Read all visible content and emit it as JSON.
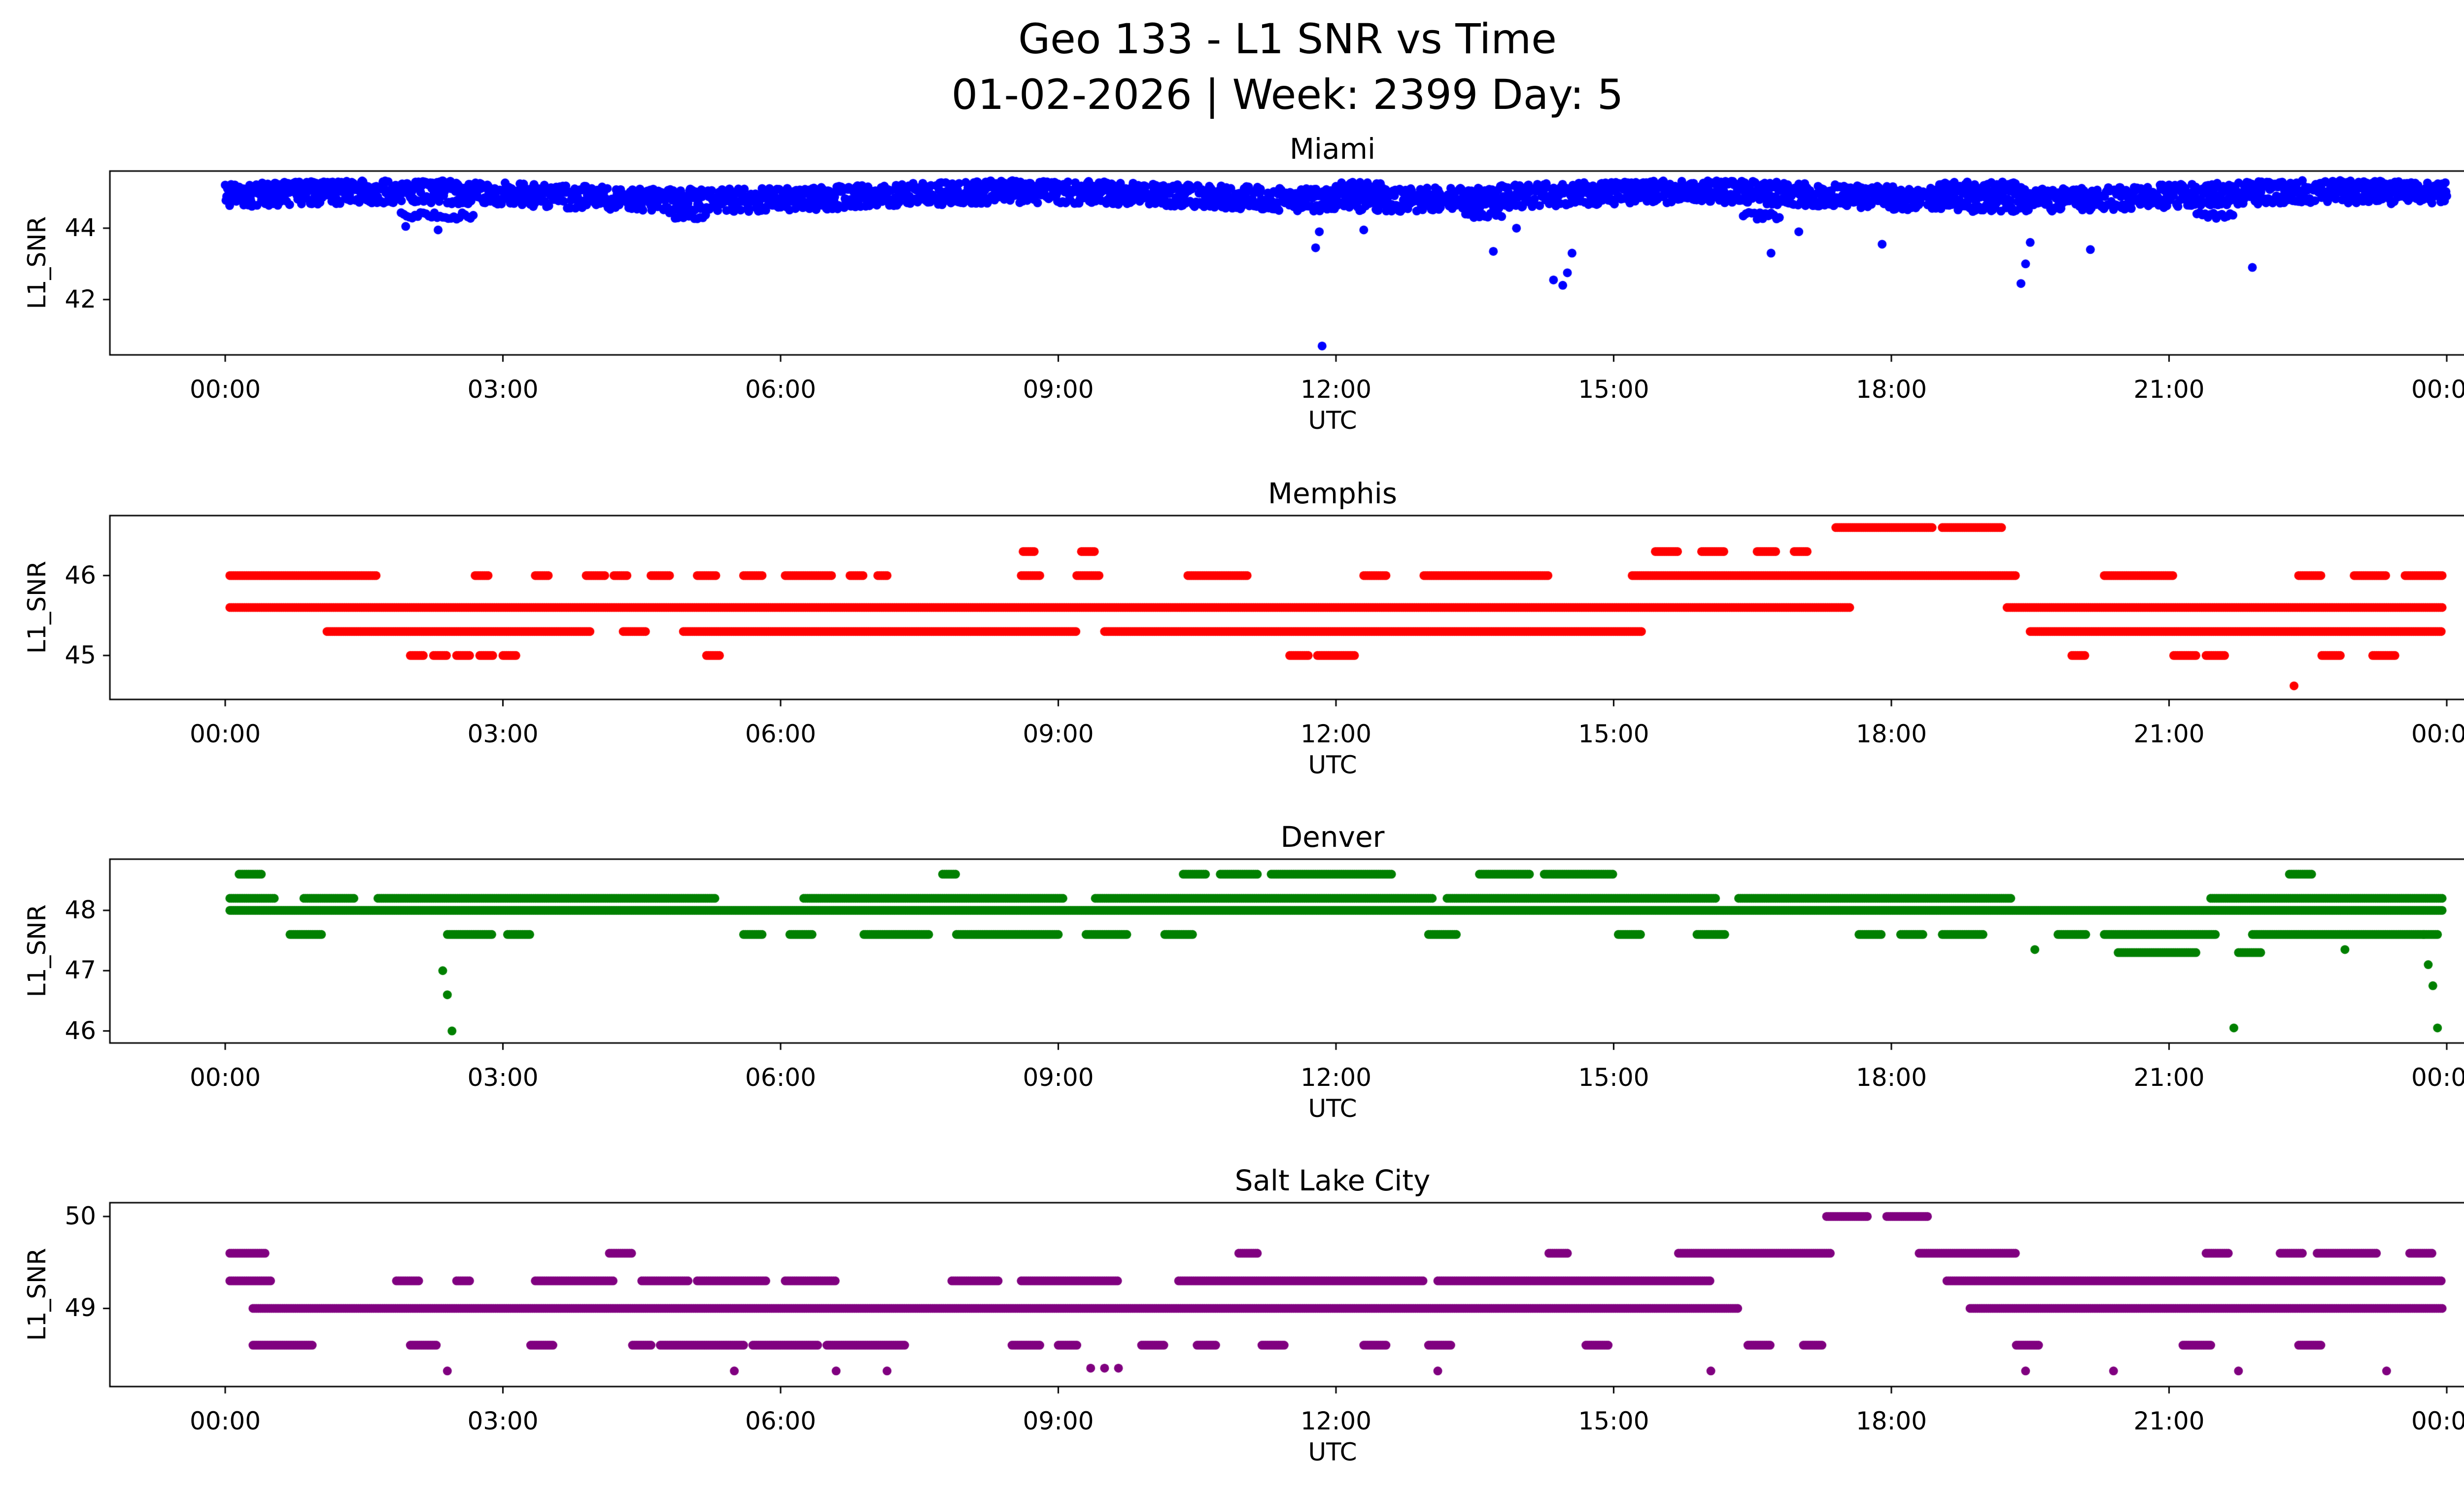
{
  "figure": {
    "title_line1": "Geo 133 - L1 SNR vs Time",
    "title_line2": "01-02-2026 | Week: 2399 Day: 5",
    "background": "#ffffff",
    "axes_color": "#000000"
  },
  "chart_data": [
    {
      "type": "scatter",
      "title": "Miami",
      "color": "#0000ff",
      "xlabel": "UTC",
      "ylabel": "L1_SNR",
      "x_tick_hours": [
        0,
        3,
        6,
        9,
        12,
        15,
        18,
        21,
        24
      ],
      "x_tick_labels": [
        "00:00",
        "03:00",
        "06:00",
        "09:00",
        "12:00",
        "15:00",
        "18:00",
        "21:00",
        "00:00"
      ],
      "y_ticks": [
        42,
        44
      ],
      "ylim": [
        40.45,
        45.6
      ],
      "xlim_hours": [
        0,
        24
      ],
      "bands": [
        {
          "y": 44.9,
          "jitter": 0.32,
          "step": 0.008,
          "wave": [
            0.12,
            7
          ],
          "segments": [
            [
              0,
              24
            ]
          ]
        },
        {
          "y": 45.15,
          "jitter": 0.15,
          "step": 0.02,
          "segments": [
            [
              0.2,
              1.4
            ],
            [
              8.2,
              8.7
            ],
            [
              12.0,
              12.5
            ],
            [
              14.8,
              15.4
            ],
            [
              18.5,
              19.4
            ],
            [
              22.9,
              23.7
            ]
          ]
        },
        {
          "y": 44.35,
          "jitter": 0.1,
          "step": 0.03,
          "segments": [
            [
              1.9,
              2.7
            ],
            [
              4.8,
              5.2
            ],
            [
              13.4,
              13.8
            ],
            [
              16.4,
              16.8
            ],
            [
              21.3,
              21.7
            ]
          ]
        }
      ],
      "points": [
        [
          1.95,
          44.05
        ],
        [
          2.3,
          43.95
        ],
        [
          11.78,
          43.45
        ],
        [
          11.82,
          43.9
        ],
        [
          11.85,
          40.7
        ],
        [
          12.3,
          43.95
        ],
        [
          13.7,
          43.35
        ],
        [
          13.95,
          44.0
        ],
        [
          14.35,
          42.55
        ],
        [
          14.45,
          42.4
        ],
        [
          14.5,
          42.75
        ],
        [
          14.55,
          43.3
        ],
        [
          16.7,
          43.3
        ],
        [
          17.0,
          43.9
        ],
        [
          17.9,
          43.55
        ],
        [
          19.4,
          42.45
        ],
        [
          19.45,
          43.0
        ],
        [
          19.5,
          43.6
        ],
        [
          20.15,
          43.4
        ],
        [
          21.9,
          42.9
        ]
      ]
    },
    {
      "type": "scatter",
      "title": "Memphis",
      "color": "#ff0000",
      "xlabel": "UTC",
      "ylabel": "L1_SNR",
      "x_tick_hours": [
        0,
        3,
        6,
        9,
        12,
        15,
        18,
        21,
        24
      ],
      "x_tick_labels": [
        "00:00",
        "03:00",
        "06:00",
        "09:00",
        "12:00",
        "15:00",
        "18:00",
        "21:00",
        "00:00"
      ],
      "y_ticks": [
        45,
        46
      ],
      "ylim": [
        44.45,
        46.75
      ],
      "xlim_hours": [
        0,
        24
      ],
      "bands": [
        {
          "y": 45.6,
          "segments": [
            [
              0.05,
              17.55
            ],
            [
              19.25,
              23.95
            ]
          ]
        },
        {
          "y": 45.3,
          "segments": [
            [
              1.1,
              3.95
            ],
            [
              4.3,
              4.55
            ],
            [
              4.95,
              9.2
            ],
            [
              9.5,
              15.3
            ],
            [
              19.5,
              23.95
            ]
          ]
        },
        {
          "y": 46.0,
          "segments": [
            [
              0.05,
              1.65
            ],
            [
              2.7,
              2.85
            ],
            [
              3.35,
              3.5
            ],
            [
              3.9,
              4.1
            ],
            [
              4.2,
              4.35
            ],
            [
              4.6,
              4.8
            ],
            [
              5.1,
              5.3
            ],
            [
              5.6,
              5.8
            ],
            [
              6.05,
              6.55
            ],
            [
              6.75,
              6.9
            ],
            [
              7.05,
              7.15
            ],
            [
              8.6,
              8.8
            ],
            [
              9.2,
              9.45
            ],
            [
              10.4,
              11.05
            ],
            [
              12.3,
              12.55
            ],
            [
              12.95,
              14.3
            ],
            [
              15.2,
              19.35
            ],
            [
              20.3,
              21.05
            ],
            [
              22.4,
              22.65
            ],
            [
              23.0,
              23.35
            ],
            [
              23.55,
              23.95
            ]
          ]
        },
        {
          "y": 46.3,
          "segments": [
            [
              8.62,
              8.75
            ],
            [
              9.25,
              9.4
            ],
            [
              15.45,
              15.7
            ],
            [
              15.95,
              16.2
            ],
            [
              16.55,
              16.75
            ],
            [
              16.95,
              17.1
            ]
          ]
        },
        {
          "y": 46.6,
          "segments": [
            [
              17.4,
              18.45
            ],
            [
              18.55,
              19.2
            ]
          ]
        },
        {
          "y": 45.0,
          "segments": [
            [
              2.0,
              2.15
            ],
            [
              2.25,
              2.4
            ],
            [
              2.5,
              2.65
            ],
            [
              2.75,
              2.9
            ],
            [
              3.0,
              3.15
            ],
            [
              5.2,
              5.35
            ],
            [
              11.5,
              11.7
            ],
            [
              11.8,
              12.2
            ],
            [
              19.95,
              20.1
            ],
            [
              21.05,
              21.3
            ],
            [
              21.4,
              21.6
            ],
            [
              22.65,
              22.85
            ],
            [
              23.2,
              23.45
            ]
          ]
        }
      ],
      "points": [
        [
          22.35,
          44.62
        ]
      ]
    },
    {
      "type": "scatter",
      "title": "Denver",
      "color": "#008000",
      "xlabel": "UTC",
      "ylabel": "L1_SNR",
      "x_tick_hours": [
        0,
        3,
        6,
        9,
        12,
        15,
        18,
        21,
        24
      ],
      "x_tick_labels": [
        "00:00",
        "03:00",
        "06:00",
        "09:00",
        "12:00",
        "15:00",
        "18:00",
        "21:00",
        "00:00"
      ],
      "y_ticks": [
        46,
        47,
        48
      ],
      "ylim": [
        45.8,
        48.85
      ],
      "xlim_hours": [
        0,
        24
      ],
      "bands": [
        {
          "y": 48.0,
          "segments": [
            [
              0.05,
              23.95
            ]
          ]
        },
        {
          "y": 48.2,
          "segments": [
            [
              0.05,
              0.55
            ],
            [
              0.85,
              1.4
            ],
            [
              1.65,
              5.3
            ],
            [
              6.25,
              9.05
            ],
            [
              9.4,
              13.05
            ],
            [
              13.2,
              16.1
            ],
            [
              16.35,
              19.3
            ],
            [
              21.45,
              23.95
            ]
          ]
        },
        {
          "y": 47.6,
          "segments": [
            [
              0.7,
              1.05
            ],
            [
              2.4,
              2.9
            ],
            [
              3.05,
              3.3
            ],
            [
              5.6,
              5.8
            ],
            [
              6.1,
              6.35
            ],
            [
              6.9,
              7.6
            ],
            [
              7.9,
              9.0
            ],
            [
              9.3,
              9.75
            ],
            [
              10.15,
              10.45
            ],
            [
              13.0,
              13.3
            ],
            [
              15.05,
              15.3
            ],
            [
              15.9,
              16.2
            ],
            [
              17.65,
              17.9
            ],
            [
              18.1,
              18.35
            ],
            [
              18.55,
              19.0
            ],
            [
              19.8,
              20.1
            ],
            [
              20.3,
              21.5
            ],
            [
              21.9,
              23.9
            ]
          ]
        },
        {
          "y": 48.6,
          "segments": [
            [
              0.15,
              0.4
            ],
            [
              7.75,
              7.9
            ],
            [
              10.35,
              10.6
            ],
            [
              10.75,
              11.15
            ],
            [
              11.3,
              12.6
            ],
            [
              13.55,
              14.1
            ],
            [
              14.25,
              15.0
            ],
            [
              22.3,
              22.55
            ]
          ]
        },
        {
          "y": 47.3,
          "segments": [
            [
              20.45,
              21.3
            ],
            [
              21.75,
              22.0
            ]
          ]
        }
      ],
      "points": [
        [
          2.35,
          47.0
        ],
        [
          2.4,
          46.6
        ],
        [
          2.45,
          46.0
        ],
        [
          19.55,
          47.35
        ],
        [
          21.7,
          46.05
        ],
        [
          22.9,
          47.35
        ],
        [
          23.75,
          47.6
        ],
        [
          23.8,
          47.1
        ],
        [
          23.85,
          46.75
        ],
        [
          23.9,
          46.05
        ]
      ]
    },
    {
      "type": "scatter",
      "title": "Salt Lake City",
      "color": "#800080",
      "xlabel": "UTC",
      "ylabel": "L1_SNR",
      "x_tick_hours": [
        0,
        3,
        6,
        9,
        12,
        15,
        18,
        21,
        24
      ],
      "x_tick_labels": [
        "00:00",
        "03:00",
        "06:00",
        "09:00",
        "12:00",
        "15:00",
        "18:00",
        "21:00",
        "00:00"
      ],
      "y_ticks": [
        49,
        50
      ],
      "ylim": [
        48.15,
        50.15
      ],
      "xlim_hours": [
        0,
        24
      ],
      "bands": [
        {
          "y": 49.0,
          "segments": [
            [
              0.3,
              16.35
            ],
            [
              18.85,
              23.95
            ]
          ]
        },
        {
          "y": 49.3,
          "segments": [
            [
              0.05,
              0.5
            ],
            [
              1.85,
              2.1
            ],
            [
              2.5,
              2.65
            ],
            [
              3.35,
              4.2
            ],
            [
              4.5,
              5.0
            ],
            [
              5.1,
              5.85
            ],
            [
              6.05,
              6.6
            ],
            [
              7.85,
              8.35
            ],
            [
              8.6,
              9.65
            ],
            [
              10.3,
              12.95
            ],
            [
              13.1,
              16.05
            ],
            [
              18.6,
              23.95
            ]
          ]
        },
        {
          "y": 48.6,
          "segments": [
            [
              0.3,
              0.95
            ],
            [
              2.0,
              2.3
            ],
            [
              3.3,
              3.55
            ],
            [
              4.4,
              4.6
            ],
            [
              4.7,
              5.6
            ],
            [
              5.7,
              6.4
            ],
            [
              6.5,
              7.35
            ],
            [
              8.5,
              8.8
            ],
            [
              9.0,
              9.2
            ],
            [
              9.9,
              10.15
            ],
            [
              10.5,
              10.7
            ],
            [
              11.2,
              11.45
            ],
            [
              12.3,
              12.55
            ],
            [
              13.0,
              13.25
            ],
            [
              14.7,
              14.95
            ],
            [
              16.45,
              16.7
            ],
            [
              17.05,
              17.25
            ],
            [
              19.35,
              19.6
            ],
            [
              21.15,
              21.45
            ],
            [
              22.4,
              22.65
            ]
          ]
        },
        {
          "y": 49.6,
          "segments": [
            [
              0.05,
              0.45
            ],
            [
              4.15,
              4.4
            ],
            [
              10.95,
              11.15
            ],
            [
              14.3,
              14.5
            ],
            [
              15.7,
              17.35
            ],
            [
              18.3,
              19.35
            ],
            [
              21.4,
              21.65
            ],
            [
              22.2,
              22.45
            ],
            [
              22.6,
              23.25
            ],
            [
              23.6,
              23.85
            ]
          ]
        },
        {
          "y": 50.0,
          "segments": [
            [
              17.3,
              17.75
            ],
            [
              17.95,
              18.4
            ]
          ]
        }
      ],
      "points": [
        [
          2.4,
          48.32
        ],
        [
          5.5,
          48.32
        ],
        [
          6.6,
          48.32
        ],
        [
          7.15,
          48.32
        ],
        [
          9.35,
          48.35
        ],
        [
          9.5,
          48.35
        ],
        [
          9.65,
          48.35
        ],
        [
          13.1,
          48.32
        ],
        [
          16.05,
          48.32
        ],
        [
          19.45,
          48.32
        ],
        [
          20.4,
          48.32
        ],
        [
          21.75,
          48.32
        ],
        [
          23.35,
          48.32
        ]
      ]
    }
  ]
}
